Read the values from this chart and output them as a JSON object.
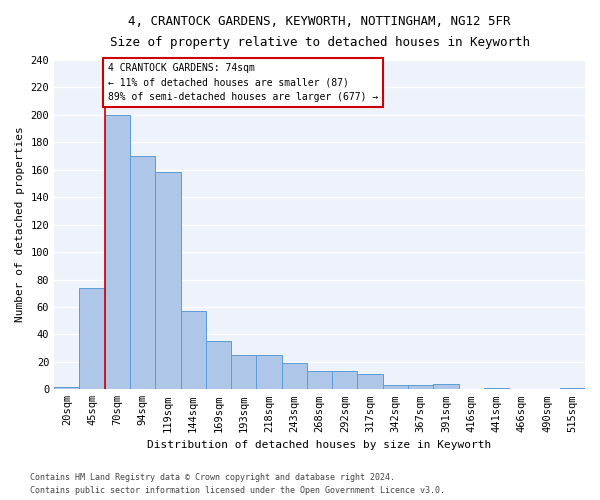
{
  "title_line1": "4, CRANTOCK GARDENS, KEYWORTH, NOTTINGHAM, NG12 5FR",
  "title_line2": "Size of property relative to detached houses in Keyworth",
  "xlabel": "Distribution of detached houses by size in Keyworth",
  "ylabel": "Number of detached properties",
  "footer_line1": "Contains HM Land Registry data © Crown copyright and database right 2024.",
  "footer_line2": "Contains public sector information licensed under the Open Government Licence v3.0.",
  "bar_labels": [
    "20sqm",
    "45sqm",
    "70sqm",
    "94sqm",
    "119sqm",
    "144sqm",
    "169sqm",
    "193sqm",
    "218sqm",
    "243sqm",
    "268sqm",
    "292sqm",
    "317sqm",
    "342sqm",
    "367sqm",
    "391sqm",
    "416sqm",
    "441sqm",
    "466sqm",
    "490sqm",
    "515sqm"
  ],
  "bar_values": [
    2,
    74,
    200,
    170,
    158,
    57,
    35,
    25,
    25,
    19,
    13,
    13,
    11,
    3,
    3,
    4,
    0,
    1,
    0,
    0,
    1
  ],
  "bar_color": "#aec6e8",
  "bar_edge_color": "#5b9bd5",
  "background_color": "#eef2fb",
  "grid_color": "#ffffff",
  "annotation_line1": "4 CRANTOCK GARDENS: 74sqm",
  "annotation_line2": "← 11% of detached houses are smaller (87)",
  "annotation_line3": "89% of semi-detached houses are larger (677) →",
  "annotation_box_edge_color": "#cc0000",
  "red_line_bar_index": 2,
  "red_line_color": "#cc0000",
  "ylim": [
    0,
    240
  ],
  "yticks": [
    0,
    20,
    40,
    60,
    80,
    100,
    120,
    140,
    160,
    180,
    200,
    220,
    240
  ],
  "fig_bg": "#ffffff"
}
